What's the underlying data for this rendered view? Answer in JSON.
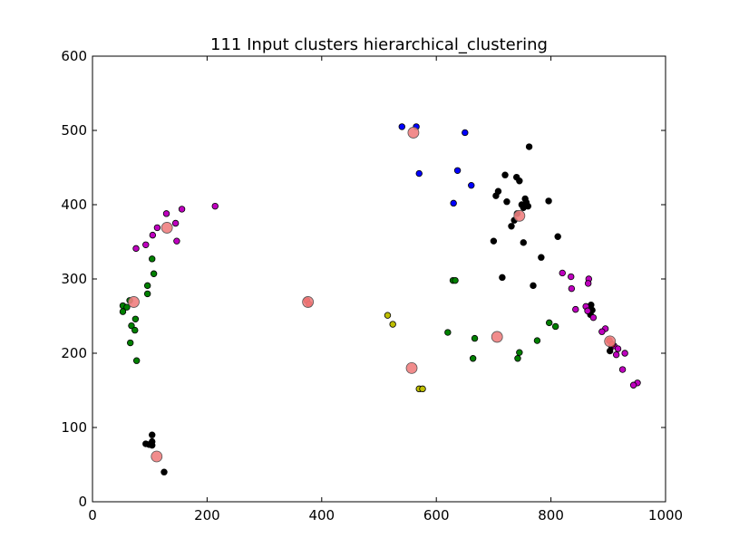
{
  "chart_data": {
    "type": "scatter",
    "title": "111 Input clusters hierarchical_clustering",
    "xlabel": "",
    "ylabel": "",
    "xlim": [
      0,
      1000
    ],
    "ylim": [
      0,
      600
    ],
    "xticks": [
      "0",
      "200",
      "400",
      "600",
      "800",
      "1000"
    ],
    "yticks": [
      "0",
      "100",
      "200",
      "300",
      "400",
      "500",
      "600"
    ],
    "grid": false,
    "colors": {
      "blue": "#0000ff",
      "black": "#000000",
      "magenta": "#bf00bf",
      "green": "#008000",
      "yellow": "#bfbf00",
      "red": "#ff0000",
      "centroid": "#f08080"
    },
    "points": [
      {
        "x": 540,
        "y": 505,
        "c": "blue"
      },
      {
        "x": 565,
        "y": 505,
        "c": "blue"
      },
      {
        "x": 650,
        "y": 497,
        "c": "blue"
      },
      {
        "x": 570,
        "y": 442,
        "c": "blue"
      },
      {
        "x": 637,
        "y": 446,
        "c": "blue"
      },
      {
        "x": 661,
        "y": 426,
        "c": "blue"
      },
      {
        "x": 630,
        "y": 402,
        "c": "blue"
      },
      {
        "x": 762,
        "y": 478,
        "c": "black"
      },
      {
        "x": 720,
        "y": 440,
        "c": "black"
      },
      {
        "x": 740,
        "y": 437,
        "c": "black"
      },
      {
        "x": 745,
        "y": 432,
        "c": "black"
      },
      {
        "x": 708,
        "y": 418,
        "c": "black"
      },
      {
        "x": 704,
        "y": 412,
        "c": "black"
      },
      {
        "x": 723,
        "y": 404,
        "c": "black"
      },
      {
        "x": 755,
        "y": 408,
        "c": "black"
      },
      {
        "x": 757,
        "y": 403,
        "c": "black"
      },
      {
        "x": 760,
        "y": 398,
        "c": "black"
      },
      {
        "x": 749,
        "y": 400,
        "c": "black"
      },
      {
        "x": 752,
        "y": 396,
        "c": "black"
      },
      {
        "x": 796,
        "y": 405,
        "c": "black"
      },
      {
        "x": 741,
        "y": 388,
        "c": "black"
      },
      {
        "x": 736,
        "y": 379,
        "c": "black"
      },
      {
        "x": 731,
        "y": 371,
        "c": "black"
      },
      {
        "x": 812,
        "y": 357,
        "c": "black"
      },
      {
        "x": 700,
        "y": 351,
        "c": "black"
      },
      {
        "x": 752,
        "y": 349,
        "c": "black"
      },
      {
        "x": 783,
        "y": 329,
        "c": "black"
      },
      {
        "x": 715,
        "y": 302,
        "c": "black"
      },
      {
        "x": 769,
        "y": 291,
        "c": "black"
      },
      {
        "x": 870,
        "y": 265,
        "c": "black"
      },
      {
        "x": 872,
        "y": 258,
        "c": "black"
      },
      {
        "x": 869,
        "y": 252,
        "c": "black"
      },
      {
        "x": 903,
        "y": 203,
        "c": "black"
      },
      {
        "x": 906,
        "y": 209,
        "c": "black"
      },
      {
        "x": 104,
        "y": 90,
        "c": "black"
      },
      {
        "x": 93,
        "y": 78,
        "c": "black"
      },
      {
        "x": 99,
        "y": 77,
        "c": "black"
      },
      {
        "x": 104,
        "y": 81,
        "c": "black"
      },
      {
        "x": 104,
        "y": 76,
        "c": "black"
      },
      {
        "x": 125,
        "y": 40,
        "c": "black"
      },
      {
        "x": 214,
        "y": 398,
        "c": "magenta"
      },
      {
        "x": 156,
        "y": 394,
        "c": "magenta"
      },
      {
        "x": 129,
        "y": 388,
        "c": "magenta"
      },
      {
        "x": 145,
        "y": 375,
        "c": "magenta"
      },
      {
        "x": 113,
        "y": 369,
        "c": "magenta"
      },
      {
        "x": 105,
        "y": 359,
        "c": "magenta"
      },
      {
        "x": 147,
        "y": 351,
        "c": "magenta"
      },
      {
        "x": 93,
        "y": 346,
        "c": "magenta"
      },
      {
        "x": 76,
        "y": 341,
        "c": "magenta"
      },
      {
        "x": 820,
        "y": 308,
        "c": "magenta"
      },
      {
        "x": 835,
        "y": 303,
        "c": "magenta"
      },
      {
        "x": 866,
        "y": 300,
        "c": "magenta"
      },
      {
        "x": 865,
        "y": 294,
        "c": "magenta"
      },
      {
        "x": 836,
        "y": 287,
        "c": "magenta"
      },
      {
        "x": 843,
        "y": 259,
        "c": "magenta"
      },
      {
        "x": 861,
        "y": 263,
        "c": "magenta"
      },
      {
        "x": 864,
        "y": 257,
        "c": "magenta"
      },
      {
        "x": 874,
        "y": 248,
        "c": "magenta"
      },
      {
        "x": 895,
        "y": 233,
        "c": "magenta"
      },
      {
        "x": 889,
        "y": 229,
        "c": "magenta"
      },
      {
        "x": 910,
        "y": 210,
        "c": "magenta"
      },
      {
        "x": 917,
        "y": 206,
        "c": "magenta"
      },
      {
        "x": 929,
        "y": 200,
        "c": "magenta"
      },
      {
        "x": 914,
        "y": 198,
        "c": "magenta"
      },
      {
        "x": 925,
        "y": 178,
        "c": "magenta"
      },
      {
        "x": 951,
        "y": 160,
        "c": "magenta"
      },
      {
        "x": 944,
        "y": 157,
        "c": "magenta"
      },
      {
        "x": 104,
        "y": 327,
        "c": "green"
      },
      {
        "x": 107,
        "y": 307,
        "c": "green"
      },
      {
        "x": 96,
        "y": 291,
        "c": "green"
      },
      {
        "x": 96,
        "y": 280,
        "c": "green"
      },
      {
        "x": 65,
        "y": 271,
        "c": "green"
      },
      {
        "x": 53,
        "y": 264,
        "c": "green"
      },
      {
        "x": 60,
        "y": 262,
        "c": "green"
      },
      {
        "x": 53,
        "y": 256,
        "c": "green"
      },
      {
        "x": 75,
        "y": 246,
        "c": "green"
      },
      {
        "x": 68,
        "y": 237,
        "c": "green"
      },
      {
        "x": 74,
        "y": 231,
        "c": "green"
      },
      {
        "x": 66,
        "y": 214,
        "c": "green"
      },
      {
        "x": 77,
        "y": 190,
        "c": "green"
      },
      {
        "x": 629,
        "y": 298,
        "c": "green"
      },
      {
        "x": 633,
        "y": 298,
        "c": "green"
      },
      {
        "x": 797,
        "y": 241,
        "c": "green"
      },
      {
        "x": 808,
        "y": 236,
        "c": "green"
      },
      {
        "x": 620,
        "y": 228,
        "c": "green"
      },
      {
        "x": 667,
        "y": 220,
        "c": "green"
      },
      {
        "x": 776,
        "y": 217,
        "c": "green"
      },
      {
        "x": 745,
        "y": 201,
        "c": "green"
      },
      {
        "x": 664,
        "y": 193,
        "c": "green"
      },
      {
        "x": 742,
        "y": 193,
        "c": "green"
      },
      {
        "x": 515,
        "y": 251,
        "c": "yellow"
      },
      {
        "x": 524,
        "y": 239,
        "c": "yellow"
      },
      {
        "x": 570,
        "y": 152,
        "c": "yellow"
      },
      {
        "x": 576,
        "y": 152,
        "c": "yellow"
      },
      {
        "x": 374,
        "y": 271,
        "c": "red"
      },
      {
        "x": 378,
        "y": 266,
        "c": "red"
      },
      {
        "x": 902,
        "y": 217,
        "c": "red"
      },
      {
        "x": 907,
        "y": 212,
        "c": "red"
      }
    ],
    "centroids": [
      {
        "x": 560,
        "y": 497
      },
      {
        "x": 745,
        "y": 385
      },
      {
        "x": 130,
        "y": 369
      },
      {
        "x": 72,
        "y": 269
      },
      {
        "x": 376,
        "y": 269
      },
      {
        "x": 706,
        "y": 222
      },
      {
        "x": 557,
        "y": 180
      },
      {
        "x": 903,
        "y": 216
      },
      {
        "x": 112,
        "y": 61
      }
    ]
  }
}
